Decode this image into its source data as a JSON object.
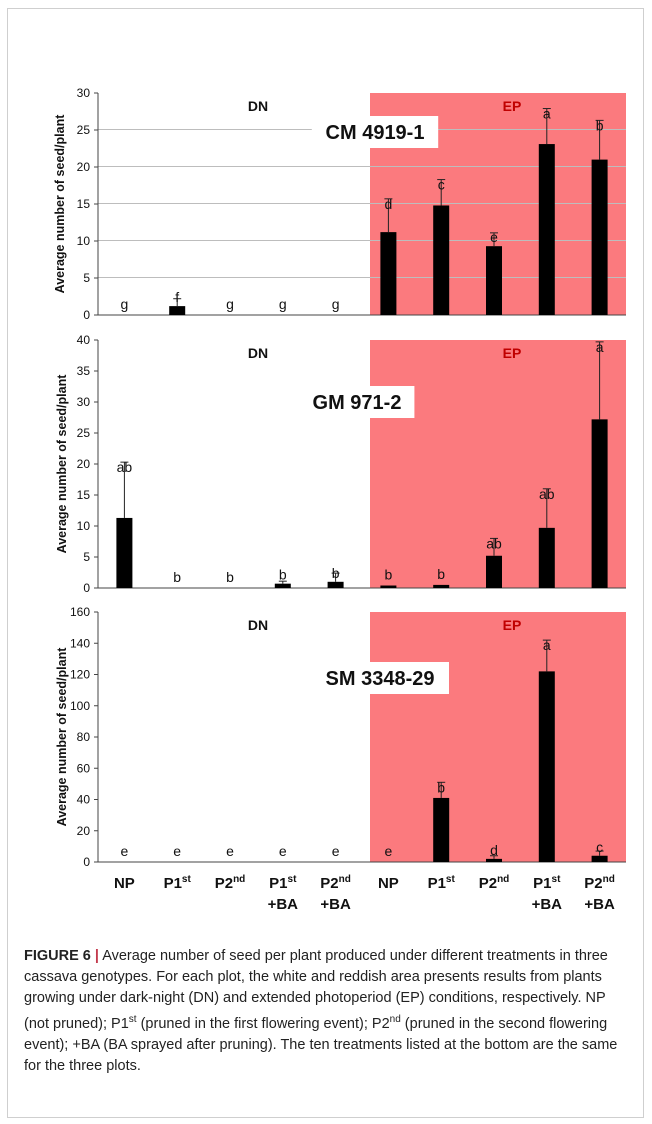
{
  "figure": {
    "region_left": "DN",
    "region_right": "EP",
    "colors": {
      "ep_background": "#fb7a7e",
      "ep_label": "#c00000",
      "bar": "#000000",
      "grid": "#bdbdbd"
    },
    "x_tick_lines": [
      [
        "NP"
      ],
      [
        "P1st"
      ],
      [
        "P2nd"
      ],
      [
        "P1st",
        "+BA"
      ],
      [
        "P2nd",
        "+BA"
      ],
      [
        "NP"
      ],
      [
        "P1st"
      ],
      [
        "P2nd"
      ],
      [
        "P1st",
        "+BA"
      ],
      [
        "P2nd",
        "+BA"
      ]
    ]
  },
  "chart_data": [
    {
      "type": "bar",
      "title": "CM 4919-1",
      "ylabel": "Average number of seed/plant",
      "ylim": [
        0,
        30
      ],
      "yticks": [
        0,
        5,
        10,
        15,
        20,
        25,
        30
      ],
      "grid": true,
      "categories": [
        "NP",
        "P1st",
        "P2nd",
        "P1st +BA",
        "P2nd +BA",
        "NP",
        "P1st",
        "P2nd",
        "P1st +BA",
        "P2nd +BA"
      ],
      "groups": [
        "DN",
        "DN",
        "DN",
        "DN",
        "DN",
        "EP",
        "EP",
        "EP",
        "EP",
        "EP"
      ],
      "values": [
        0,
        1.2,
        0,
        0,
        0,
        11.2,
        14.8,
        9.3,
        23.1,
        21.0
      ],
      "errors": [
        0,
        1.0,
        0,
        0,
        0,
        4.5,
        3.5,
        1.8,
        4.8,
        5.3
      ],
      "letters": [
        "g",
        "f",
        "g",
        "g",
        "g",
        "d",
        "c",
        "e",
        "a",
        "b"
      ]
    },
    {
      "type": "bar",
      "title": "GM 971-2",
      "ylabel": "Average number of seed/plant",
      "ylim": [
        0,
        40
      ],
      "yticks": [
        0,
        5,
        10,
        15,
        20,
        25,
        30,
        35,
        40
      ],
      "grid": false,
      "categories": [
        "NP",
        "P1st",
        "P2nd",
        "P1st +BA",
        "P2nd +BA",
        "NP",
        "P1st",
        "P2nd",
        "P1st +BA",
        "P2nd +BA"
      ],
      "groups": [
        "DN",
        "DN",
        "DN",
        "DN",
        "DN",
        "EP",
        "EP",
        "EP",
        "EP",
        "EP"
      ],
      "values": [
        11.3,
        0,
        0,
        0.7,
        1.0,
        0.4,
        0.5,
        5.2,
        9.7,
        27.2
      ],
      "errors": [
        9.0,
        0,
        0,
        0.4,
        1.4,
        0,
        0,
        2.8,
        6.3,
        12.5
      ],
      "letters": [
        "ab",
        "b",
        "b",
        "b",
        "b",
        "b",
        "b",
        "ab",
        "ab",
        "a"
      ]
    },
    {
      "type": "bar",
      "title": "SM 3348-29",
      "ylabel": "Average number of seed/plant",
      "ylim": [
        0,
        160
      ],
      "yticks": [
        0,
        20,
        40,
        60,
        80,
        100,
        120,
        140,
        160
      ],
      "grid": false,
      "categories": [
        "NP",
        "P1st",
        "P2nd",
        "P1st +BA",
        "P2nd +BA",
        "NP",
        "P1st",
        "P2nd",
        "P1st +BA",
        "P2nd +BA"
      ],
      "groups": [
        "DN",
        "DN",
        "DN",
        "DN",
        "DN",
        "EP",
        "EP",
        "EP",
        "EP",
        "EP"
      ],
      "values": [
        0,
        0,
        0,
        0,
        0,
        0,
        41,
        2,
        122,
        4
      ],
      "errors": [
        0,
        0,
        0,
        0,
        0,
        0,
        10,
        2,
        20,
        3
      ],
      "letters": [
        "e",
        "e",
        "e",
        "e",
        "e",
        "e",
        "b",
        "d",
        "a",
        "c"
      ]
    }
  ],
  "caption": {
    "label": "FIGURE 6",
    "separator": "|",
    "segments": [
      {
        "text": " Average number of seed per plant produced under different treatments in three cassava genotypes. For each plot, the white and reddish area presents results from plants growing under dark-night (DN) and extended photoperiod (EP) conditions, respectively. NP (not pruned); P1"
      },
      {
        "text": "st",
        "sup": true
      },
      {
        "text": " (pruned in the first flowering event); P2"
      },
      {
        "text": "nd",
        "sup": true
      },
      {
        "text": " (pruned in the second flowering event); +BA (BA sprayed after pruning). The ten treatments listed at the bottom are the same for the three plots."
      }
    ]
  }
}
